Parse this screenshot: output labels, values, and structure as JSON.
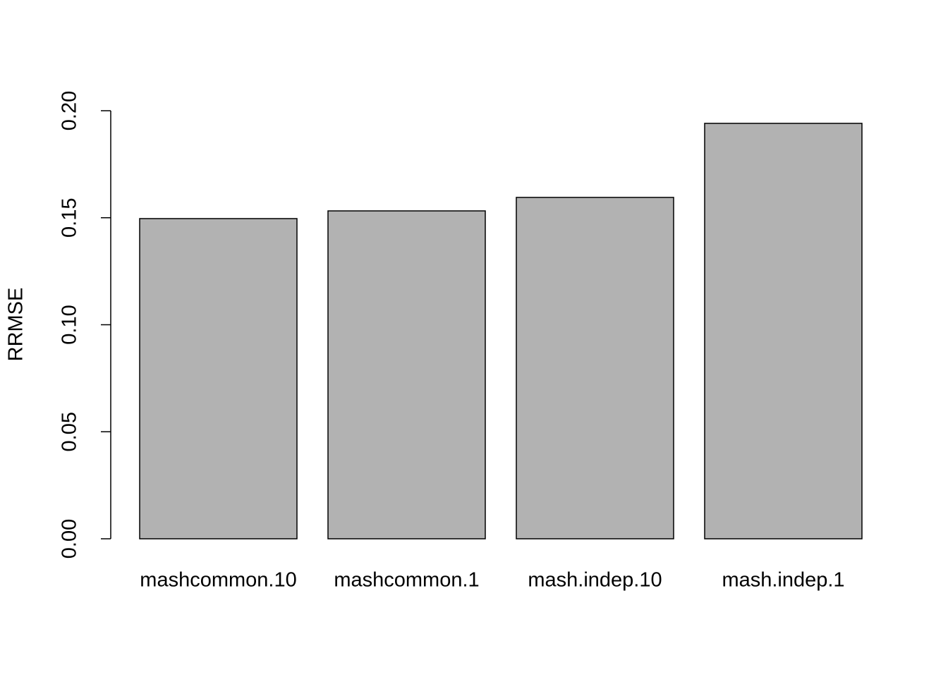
{
  "chart_data": {
    "type": "bar",
    "y_label": "RRMSE",
    "categories": [
      "mashcommon.10",
      "mashcommon.1",
      "mash.indep.10",
      "mash.indep.1"
    ],
    "values": [
      0.1496,
      0.1532,
      0.1595,
      0.1941
    ],
    "color": "#b2b2b2",
    "ylim": [
      0,
      0.2
    ],
    "yticks": [
      {
        "value": 0,
        "label": "0.00"
      },
      {
        "value": 0.05,
        "label": "0.05"
      },
      {
        "value": 0.1,
        "label": "0.10"
      },
      {
        "value": 0.15,
        "label": "0.15"
      },
      {
        "value": 0.2,
        "label": "0.20"
      }
    ],
    "grid": false
  }
}
